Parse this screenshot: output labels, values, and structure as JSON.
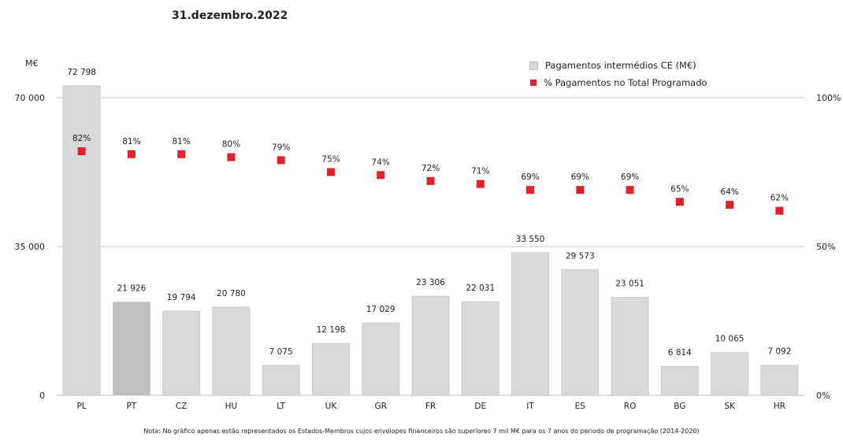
{
  "chart_data": {
    "type": "bar",
    "title": "31.dezembro.2022",
    "ylabel": "M€",
    "ylim": [
      0,
      70000
    ],
    "y2lim": [
      0,
      100
    ],
    "yticks": [
      0,
      35000,
      70000
    ],
    "yticks_labels": [
      "0",
      "35 000",
      "70 000"
    ],
    "y2ticks_labels": [
      "0%",
      "50%",
      "100%"
    ],
    "categories": [
      "PL",
      "PT",
      "CZ",
      "HU",
      "LT",
      "UK",
      "GR",
      "FR",
      "DE",
      "IT",
      "ES",
      "RO",
      "BG",
      "SK",
      "HR"
    ],
    "series": [
      {
        "name": "Pagamentos intermédios CE (M€)",
        "kind": "bar",
        "values": [
          72798,
          21926,
          19794,
          20780,
          7075,
          12198,
          17029,
          23306,
          22031,
          33550,
          29573,
          23051,
          6814,
          10065,
          7092
        ],
        "labels": [
          "72 798",
          "21 926",
          "19 794",
          "20 780",
          "7 075",
          "12 198",
          "17 029",
          "23 306",
          "22 031",
          "33 550",
          "29 573",
          "23 051",
          "6 814",
          "10 065",
          "7 092"
        ]
      },
      {
        "name": "% Pagamentos no Total Programado",
        "kind": "scatter",
        "axis": "right",
        "values": [
          82,
          81,
          81,
          80,
          79,
          75,
          74,
          72,
          71,
          69,
          69,
          69,
          65,
          64,
          62
        ],
        "labels": [
          "82%",
          "81%",
          "81%",
          "80%",
          "79%",
          "75%",
          "74%",
          "72%",
          "71%",
          "69%",
          "69%",
          "69%",
          "65%",
          "64%",
          "62%"
        ]
      }
    ],
    "highlight_category": "PT",
    "grid": true,
    "legend_position": "top-right",
    "colors": {
      "bar": "#d9d9d9",
      "bar_highlight": "#bfbfbf",
      "point": "#e0202a",
      "grid": "#c8c8c8"
    }
  },
  "note": "Nota: No gráfico apenas estão representados os Estados-Membros cujos envelopes financeiros são superiores 7 mil M€ para os 7 anos do periodo de programação (2014-2020)"
}
